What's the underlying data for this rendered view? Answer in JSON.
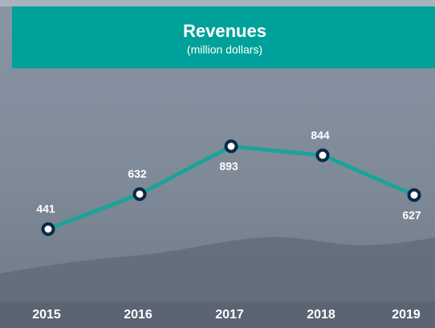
{
  "chart_data": {
    "type": "line",
    "title": "Revenues",
    "subtitle": "(million dollars)",
    "categories": [
      "2015",
      "2016",
      "2017",
      "2018",
      "2019"
    ],
    "values": [
      441,
      632,
      893,
      844,
      627
    ],
    "color": "#1ba39a"
  }
}
